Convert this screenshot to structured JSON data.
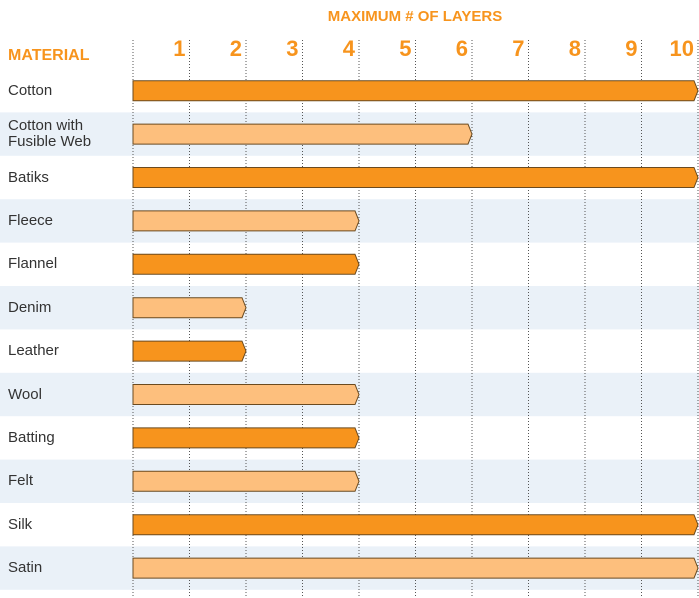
{
  "chart_data": {
    "type": "hbar",
    "title": "MAXIMUM # OF LAYERS",
    "category_header": "MATERIAL",
    "categories": [
      "Cotton",
      "Cotton with Fusible Web",
      "Batiks",
      "Fleece",
      "Flannel",
      "Denim",
      "Leather",
      "Wool",
      "Batting",
      "Felt",
      "Silk",
      "Satin"
    ],
    "values": [
      10,
      6,
      10,
      4,
      4,
      2,
      2,
      4,
      4,
      4,
      10,
      10
    ],
    "colors": [
      "#f7941d",
      "#fdbf7d",
      "#f7941d",
      "#fdbf7d",
      "#f7941d",
      "#fdbf7d",
      "#f7941d",
      "#fdbf7d",
      "#f7941d",
      "#fdbf7d",
      "#f7941d",
      "#fdbf7d"
    ],
    "xlim": [
      0,
      10
    ],
    "xticks": [
      1,
      2,
      3,
      4,
      5,
      6,
      7,
      8,
      9,
      10
    ],
    "grid": true
  }
}
